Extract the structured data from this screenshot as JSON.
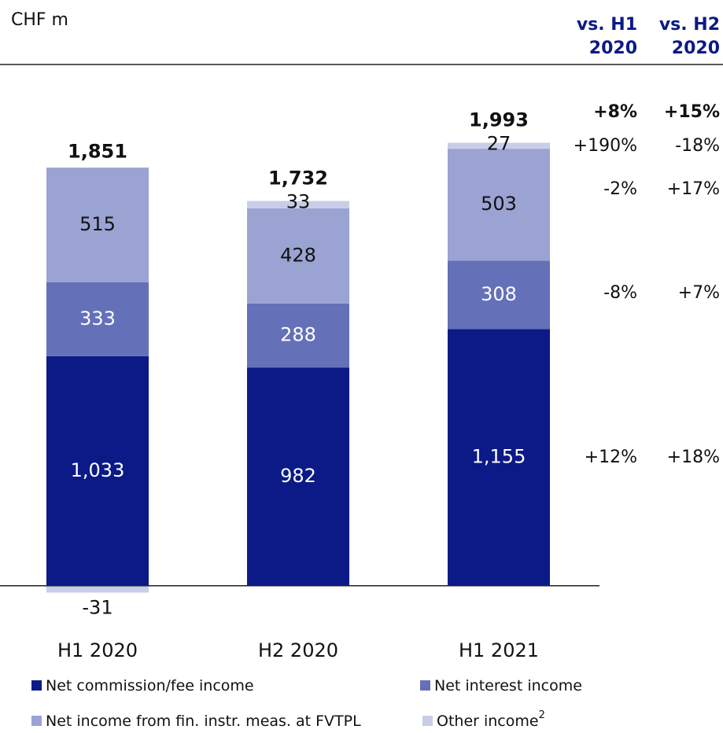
{
  "chart_data": {
    "type": "stacked_bar",
    "unit_label": "CHF m",
    "categories": [
      "H1 2020",
      "H2 2020",
      "H1 2021"
    ],
    "series": [
      {
        "name": "Net commission/fee income",
        "color": "#0c1a87",
        "values": [
          1033,
          982,
          1155
        ],
        "value_labels": [
          "1,033",
          "982",
          "1,155"
        ]
      },
      {
        "name": "Net interest income",
        "color": "#6470b8",
        "values": [
          333,
          288,
          308
        ],
        "value_labels": [
          "333",
          "288",
          "308"
        ]
      },
      {
        "name": "Net income from fin. instr. meas. at FVTPL",
        "color": "#9ba3d3",
        "values": [
          515,
          428,
          503
        ],
        "value_labels": [
          "515",
          "428",
          "503"
        ]
      },
      {
        "name": "Other income",
        "footnote": "2",
        "color": "#c9cde8",
        "values": [
          -31,
          33,
          27
        ],
        "value_labels": [
          "-31",
          "33",
          "27"
        ]
      }
    ],
    "totals": [
      1851,
      1732,
      1993
    ],
    "total_labels": [
      "1,851",
      "1,732",
      "1,993"
    ],
    "ylim": [
      -100,
      2200
    ],
    "comparison": {
      "headers": [
        [
          "vs. H1",
          "2020"
        ],
        [
          "vs. H2",
          "2020"
        ]
      ],
      "header_color": "#0c1a87",
      "total_row": [
        "+8%",
        "+15%"
      ],
      "series_rows": [
        [
          "+12%",
          "+18%"
        ],
        [
          "-8%",
          "+7%"
        ],
        [
          "-2%",
          "+17%"
        ],
        [
          "+190%",
          "-18%"
        ]
      ]
    }
  }
}
